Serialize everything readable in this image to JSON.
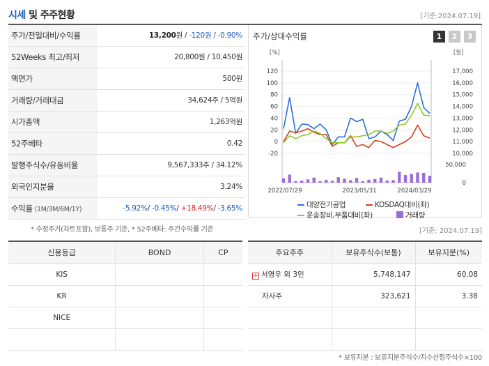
{
  "header": {
    "title_accent": "시세",
    "title_rest": " 및 주주현황",
    "asof": "[기준:2024.07.19]"
  },
  "info": [
    {
      "label": "주가/전일대비/수익률",
      "parts": [
        {
          "t": "13,200",
          "c": "bold"
        },
        {
          "t": "원 / ",
          "c": ""
        },
        {
          "t": "-120",
          "c": "neg"
        },
        {
          "t": "원 / ",
          "c": "neg"
        },
        {
          "t": "-0.90%",
          "c": "neg"
        }
      ]
    },
    {
      "label": "52Weeks 최고/최저",
      "parts": [
        {
          "t": "20,800원 / 10,450원",
          "c": ""
        }
      ]
    },
    {
      "label": "액면가",
      "parts": [
        {
          "t": "500원",
          "c": ""
        }
      ]
    },
    {
      "label": "거래량/거래대금",
      "parts": [
        {
          "t": "34,624주 / 5억원",
          "c": ""
        }
      ]
    },
    {
      "label": "시가총액",
      "parts": [
        {
          "t": "1,263억원",
          "c": ""
        }
      ]
    },
    {
      "label": "52주베타",
      "parts": [
        {
          "t": "0.42",
          "c": ""
        }
      ]
    },
    {
      "label": "발행주식수/유동비율",
      "parts": [
        {
          "t": "9,567,333주 / 34.12%",
          "c": ""
        }
      ]
    },
    {
      "label": "외국인지분율",
      "parts": [
        {
          "t": "3.24%",
          "c": ""
        }
      ]
    },
    {
      "label": "수익률",
      "label_small": "(1M/3M/6M/1Y)",
      "parts": [
        {
          "t": "-5.92%",
          "c": "neg"
        },
        {
          "t": "/ ",
          "c": ""
        },
        {
          "t": "-0.45%",
          "c": "neg"
        },
        {
          "t": "/ ",
          "c": ""
        },
        {
          "t": "+18.49%",
          "c": "pos"
        },
        {
          "t": "/ ",
          "c": ""
        },
        {
          "t": "-3.65%",
          "c": "neg"
        }
      ]
    }
  ],
  "footnote_left": "* 수정주가(차트포함), 보통주 기준, * 52주베타: 주간수익률 기준",
  "chart_panel": {
    "title": "주가/상대수익률",
    "pages": [
      "1",
      "2",
      "3"
    ],
    "active_page": 0
  },
  "chart_data": {
    "type": "line",
    "left_axis_unit": "[%]",
    "right_axis_unit": "[원]",
    "left_ylim": [
      -20,
      120
    ],
    "left_ticks": [
      "120",
      "100",
      "80",
      "60",
      "40",
      "20",
      "0",
      "-20"
    ],
    "right_ylim": [
      10000,
      17000
    ],
    "right_ticks": [
      "17,000",
      "16,000",
      "15,000",
      "14,000",
      "13,000",
      "12,000",
      "11,000",
      "10,000"
    ],
    "volume_ticks": [
      "50,000",
      "0"
    ],
    "volume_max": 50000,
    "x_labels": [
      "2022/07/29",
      "2023/05/31",
      "2024/03/29"
    ],
    "series": [
      {
        "name": "대양전기공업",
        "color": "#2a6fd6",
        "axis": "left",
        "values": [
          22,
          75,
          14,
          30,
          29,
          22,
          30,
          20,
          -5,
          8,
          8,
          40,
          34,
          38,
          5,
          8,
          18,
          12,
          2,
          35,
          38,
          60,
          100,
          58,
          48
        ]
      },
      {
        "name": "KOSDAQ대비(좌)",
        "color": "#d5401a",
        "axis": "left",
        "values": [
          0,
          18,
          15,
          18,
          22,
          16,
          12,
          12,
          -8,
          -2,
          -2,
          10,
          -8,
          -5,
          -10,
          2,
          0,
          -5,
          -10,
          -5,
          0,
          8,
          28,
          10,
          6
        ]
      },
      {
        "name": "운송장비,부품대비(좌)",
        "color": "#8ccc24",
        "axis": "left",
        "values": [
          -2,
          10,
          5,
          10,
          12,
          18,
          14,
          5,
          -2,
          -2,
          -2,
          8,
          8,
          10,
          12,
          18,
          18,
          14,
          18,
          28,
          30,
          45,
          65,
          45,
          44
        ]
      }
    ],
    "volume": {
      "name": "거래량",
      "color": "#9b6dd8",
      "values": [
        12000,
        22000,
        4000,
        6000,
        9000,
        14000,
        4000,
        8000,
        5000,
        15000,
        11000,
        7000,
        13000,
        4000,
        8000,
        10000,
        14000,
        6000,
        7000,
        30000,
        21000,
        24000,
        28000,
        27000,
        19000
      ]
    }
  },
  "legend": {
    "s1": "대양전기공업",
    "s2": "KOSDAQ대비(좌)",
    "s3": "운송장비,부품대비(좌)",
    "vol": "거래량"
  },
  "asof_mid": "[기준: 2024.07.19]",
  "credit": {
    "headers": [
      "신용등급",
      "BOND",
      "CP"
    ],
    "rows": [
      [
        "KIS",
        "",
        ""
      ],
      [
        "KR",
        "",
        ""
      ],
      [
        "NICE",
        "",
        ""
      ],
      [
        "",
        "",
        ""
      ]
    ]
  },
  "holders": {
    "headers": [
      "주요주주",
      "보유주식수(보통)",
      "보유지분(%)"
    ],
    "rows": [
      {
        "name": "서영우 외 3인",
        "shares": "5,748,147",
        "pct": "60.08",
        "expand": true
      },
      {
        "name": "자사주",
        "shares": "323,621",
        "pct": "3.38",
        "expand": false
      },
      {
        "name": "",
        "shares": "",
        "pct": "",
        "expand": false
      },
      {
        "name": "",
        "shares": "",
        "pct": "",
        "expand": false
      }
    ]
  },
  "footnote_right": "* 보유지분 : 보유지분주식수/지수산정주식수×100"
}
